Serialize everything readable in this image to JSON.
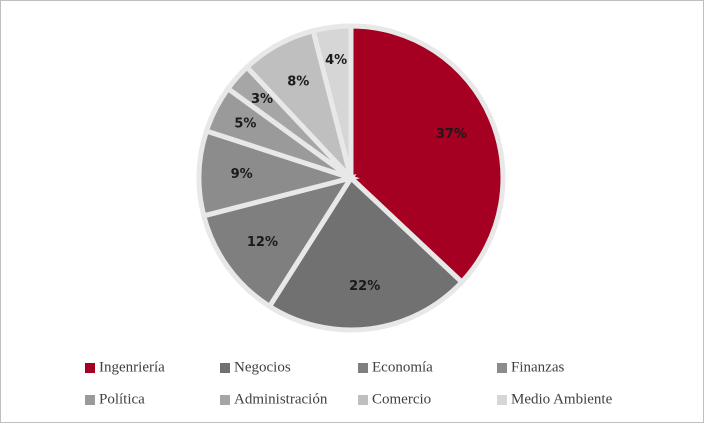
{
  "chart_data": {
    "type": "pie",
    "categories": [
      "Ingenriería",
      "Negocios",
      "Economía",
      "Finanzas",
      "Política",
      "Administración",
      "Comercio",
      "Medio Ambiente"
    ],
    "values": [
      37,
      22,
      12,
      9,
      5,
      3,
      8,
      4
    ],
    "value_labels": [
      "37%",
      "22%",
      "12%",
      "9%",
      "5%",
      "3%",
      "8%",
      "4%"
    ],
    "colors": [
      "#a50021",
      "#717171",
      "#7f7f7f",
      "#8c8c8c",
      "#9a9a9a",
      "#a6a6a6",
      "#bfbfbf",
      "#d6d6d6"
    ],
    "legend": "bottom"
  }
}
